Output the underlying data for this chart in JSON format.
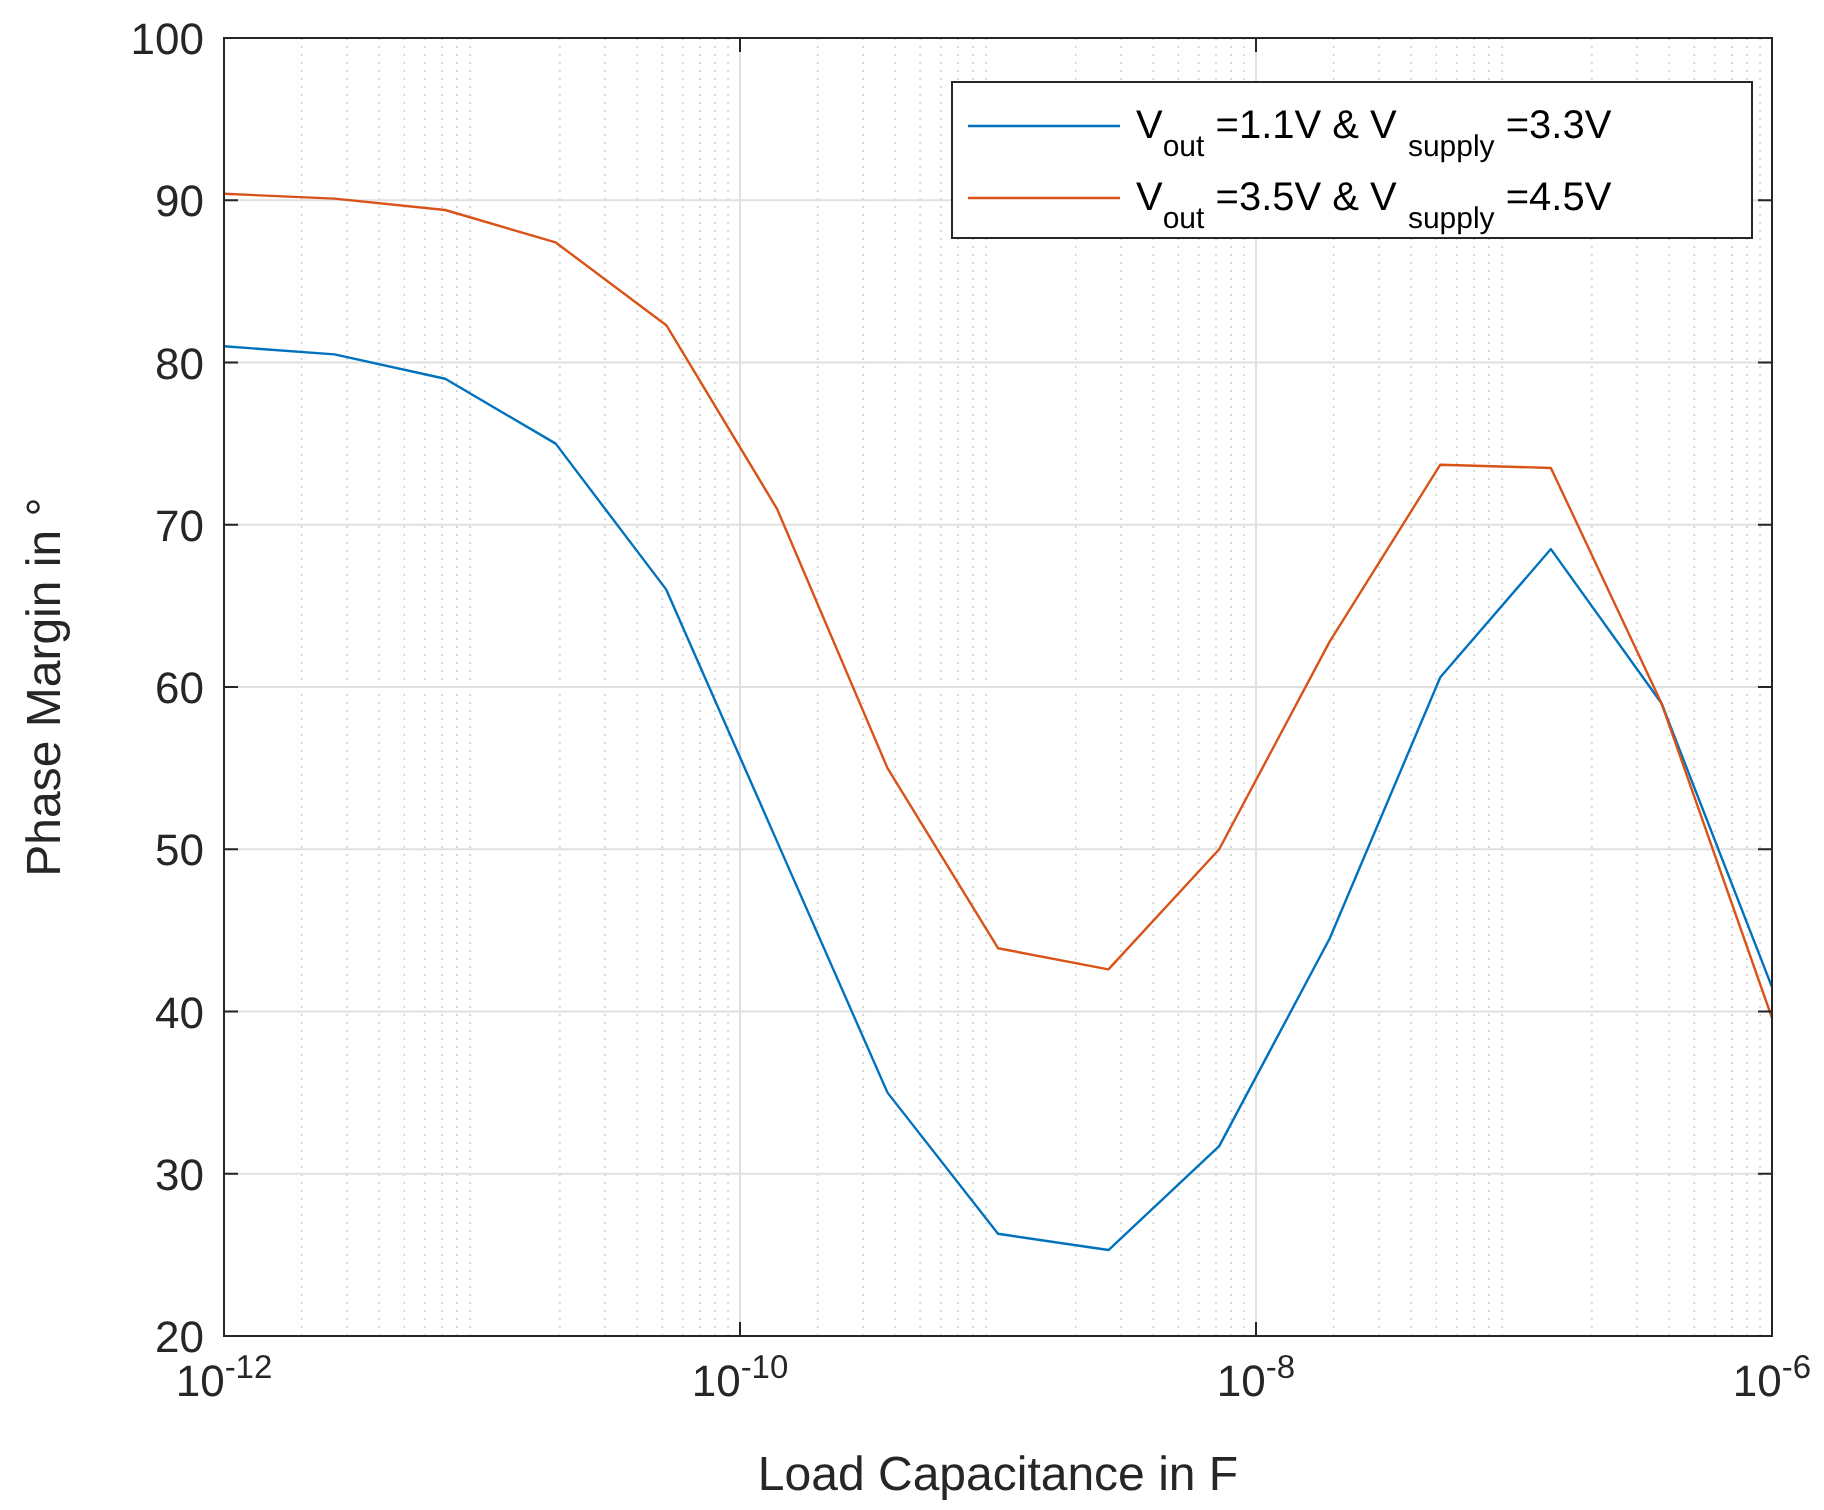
{
  "chart_data": {
    "type": "line",
    "xlabel": "Load Capacitance in F",
    "ylabel": "Phase Margin in  °",
    "x": [
      1e-12,
      2.68e-12,
      7.2e-12,
      1.93e-11,
      5.18e-11,
      1.39e-10,
      3.73e-10,
      1e-09,
      2.68e-09,
      7.2e-09,
      1.93e-08,
      5.18e-08,
      1.39e-07,
      3.73e-07,
      1e-06
    ],
    "series": [
      {
        "name": "V$_{out}$ =1.1V & V $_{supply}$ =3.3V",
        "color": "#0072bd",
        "values": [
          81,
          80.5,
          79,
          75,
          66,
          50.5,
          35,
          26.3,
          25.3,
          31.7,
          44.5,
          60.6,
          68.5,
          59,
          41.5
        ]
      },
      {
        "name": "V$_{out}$ =3.5V & V $_{supply}$ =4.5V",
        "color": "#d95319",
        "values": [
          90.4,
          90.1,
          89.4,
          87.4,
          82.3,
          71,
          55,
          43.9,
          42.6,
          50,
          62.8,
          73.7,
          73.5,
          59,
          39.6
        ]
      }
    ],
    "log": "x",
    "xlim": [
      1e-12,
      1e-06
    ],
    "xticks": [
      {
        "value": 1e-12,
        "label": "10$^{-12}$"
      },
      {
        "value": 1e-10,
        "label": "10$^{-10}$"
      },
      {
        "value": 1e-08,
        "label": "10$^{-8}$"
      },
      {
        "value": 1e-06,
        "label": "10$^{-6}$"
      }
    ],
    "ylim": [
      20,
      100
    ],
    "yticks": [
      20,
      30,
      40,
      50,
      60,
      70,
      80,
      90,
      100
    ],
    "grid": true,
    "legend": "top right",
    "marker": "none",
    "line_style": "solid"
  }
}
